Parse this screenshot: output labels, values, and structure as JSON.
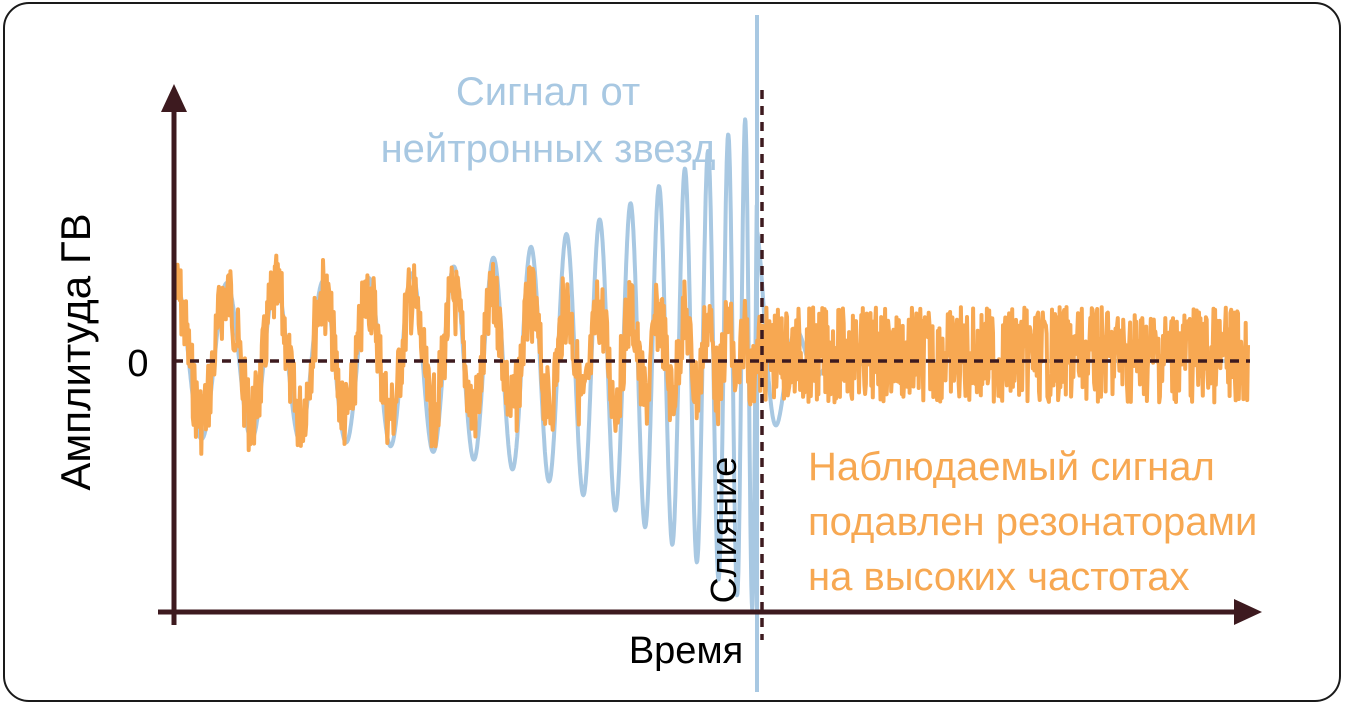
{
  "labels": {
    "y_axis": "Амплитуда ГВ",
    "x_axis": "Время",
    "zero": "0",
    "merger": "Слияние",
    "signal_title_line1": "Сигнал от",
    "signal_title_line2": "нейтронных звезд",
    "observed_line1": "Наблюдаемый сигнал",
    "observed_line2": "подавлен резонаторами",
    "observed_line3": "на высоких частотах"
  },
  "colors": {
    "axis": "#3d1a1f",
    "signal_blue": "#a8c8e2",
    "observed_orange": "#f7a852",
    "text_dark": "#000000"
  }
}
